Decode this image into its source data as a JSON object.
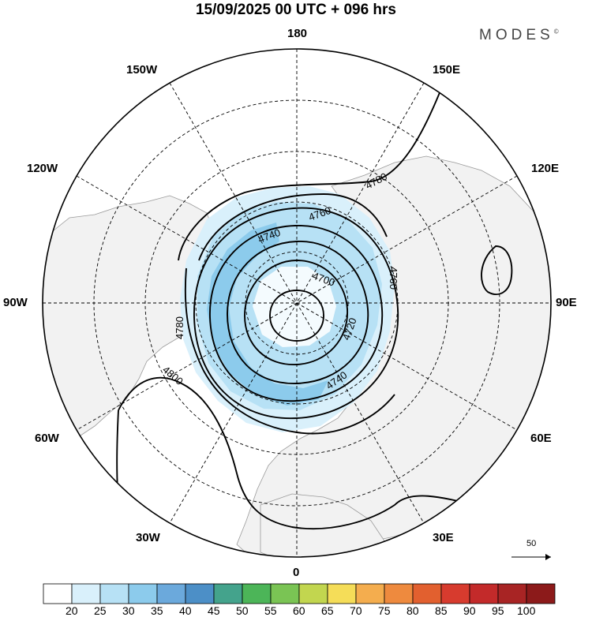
{
  "header": {
    "title": "15/09/2025  00 UTC  + 096 hrs",
    "brand": "MODES",
    "brand_mark": "©"
  },
  "map": {
    "projection": "north-polar-stereographic",
    "longitude_labels": [
      "180",
      "150W",
      "150E",
      "120W",
      "120E",
      "90W",
      "90E",
      "60W",
      "60E",
      "30W",
      "30E",
      "0"
    ],
    "contour_labels": [
      "4700",
      "4720",
      "4740",
      "4740",
      "4760",
      "4760",
      "4780",
      "4780",
      "4800"
    ],
    "colors": {
      "land": "#f2f2f2",
      "coast": "#999999",
      "grid": "#000000",
      "contour": "#000000",
      "wind_shade_20_25": "#d9f0fb",
      "wind_shade_25_30": "#b7e1f5",
      "wind_shade_30_35": "#8ccbec"
    }
  },
  "reference_vector": {
    "value": "50"
  },
  "colorbar": {
    "ticks": [
      "20",
      "25",
      "30",
      "35",
      "40",
      "45",
      "50",
      "55",
      "60",
      "65",
      "70",
      "75",
      "80",
      "85",
      "90",
      "95",
      "100"
    ],
    "colors": [
      "#ffffff",
      "#d9f0fb",
      "#b7e1f5",
      "#8ccbec",
      "#6ba9dc",
      "#4c8fc7",
      "#44a38c",
      "#4cb558",
      "#7ac454",
      "#c2d64f",
      "#f5dd58",
      "#f4ad4e",
      "#ee8a3e",
      "#e2602f",
      "#d73b2e",
      "#c32a2a",
      "#a82424",
      "#8c1a1a"
    ]
  }
}
